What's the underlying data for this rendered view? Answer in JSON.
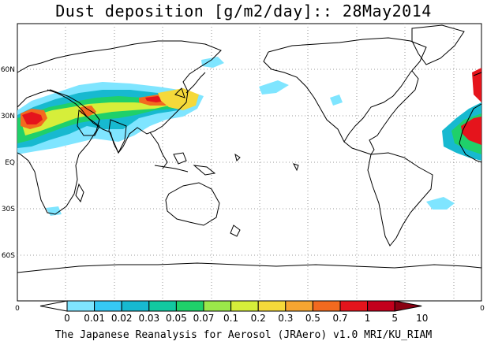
{
  "title": "Dust deposition [g/m2/day]:: 28May2014",
  "footer": "The Japanese Reanalysis for Aerosol (JRAero) v1.0 MRI/KU_RIAM",
  "lat_labels": [
    "60N",
    "30N",
    "EQ",
    "30S",
    "60S"
  ],
  "lon_edge_labels": [
    "0",
    "0"
  ],
  "colorbar": {
    "labels": [
      "0",
      "0.01",
      "0.02",
      "0.03",
      "0.05",
      "0.07",
      "0.1",
      "0.2",
      "0.3",
      "0.5",
      "0.7",
      "1",
      "5",
      "10"
    ],
    "colors": [
      "#ffffff",
      "#7fe5ff",
      "#36c9f5",
      "#17b9d0",
      "#12c8a0",
      "#1fd06a",
      "#9be84a",
      "#d6ee3a",
      "#f5d93a",
      "#f6a531",
      "#f26a1f",
      "#e5141c",
      "#c2001c",
      "#8a0012"
    ]
  },
  "map": {
    "projection": "equirectangular",
    "lon_center": "180",
    "lat_range": [
      -80,
      80
    ],
    "grid": true
  }
}
